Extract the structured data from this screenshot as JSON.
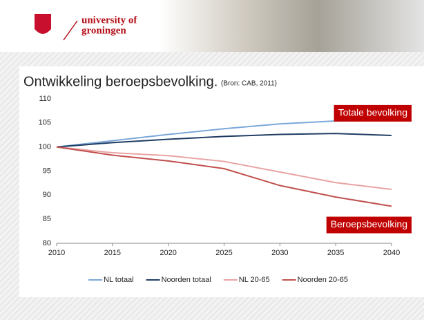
{
  "header": {
    "logo_line1": "university of",
    "logo_line2": "groningen"
  },
  "chart_data": {
    "type": "line",
    "title": "Ontwikkeling beroepsbevolking.",
    "subtitle": "(Bron: CAB, 2011)",
    "x": [
      2010,
      2015,
      2020,
      2025,
      2030,
      2035,
      2040
    ],
    "xlim": [
      2010,
      2040
    ],
    "xticks": [
      2010,
      2015,
      2020,
      2025,
      2030,
      2035,
      2040
    ],
    "ylim": [
      80,
      110
    ],
    "yticks": [
      80,
      85,
      90,
      95,
      100,
      105,
      110
    ],
    "grid": false,
    "legend": "bottom",
    "series": [
      {
        "name": "NL totaal",
        "color": "#7ba7d9",
        "values": [
          100,
          101.3,
          102.6,
          103.8,
          104.8,
          105.4,
          105.6
        ]
      },
      {
        "name": "Noorden totaal",
        "color": "#1f3d63",
        "values": [
          100,
          100.9,
          101.6,
          102.2,
          102.6,
          102.8,
          102.4
        ]
      },
      {
        "name": "NL 20-65",
        "color": "#e9a3a3",
        "values": [
          100,
          98.8,
          98.2,
          97.0,
          94.8,
          92.6,
          91.2
        ]
      },
      {
        "name": "Noorden 20-65",
        "color": "#c0504d",
        "values": [
          100,
          98.3,
          97.1,
          95.5,
          92.0,
          89.6,
          87.7
        ]
      }
    ],
    "annotations": [
      "Totale bevolking",
      "Beroepsbevolking"
    ]
  }
}
